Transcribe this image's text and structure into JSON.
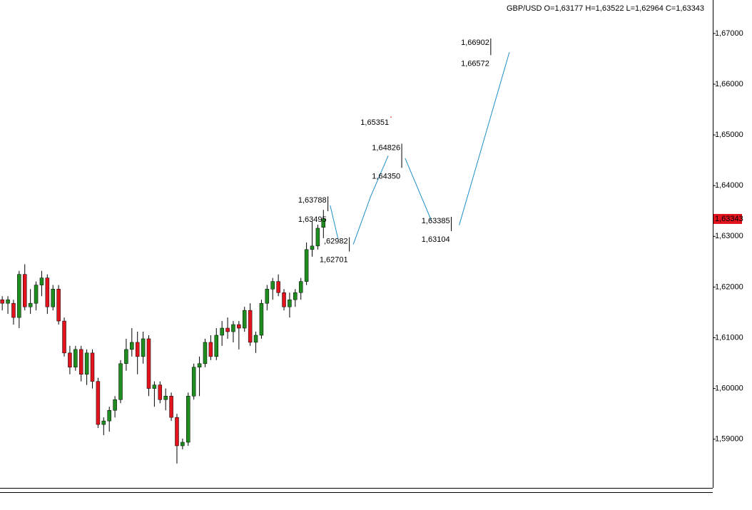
{
  "chart_data": {
    "type": "candlestick",
    "title": "GBP/USD O=1,63177 H=1,63522 L=1,62964 C=1,63343",
    "up_color": "#1e8c1e",
    "down_color": "#e2131c",
    "xlim": [
      -0.4,
      126.1
    ],
    "ylim": [
      1.5804,
      1.6766
    ],
    "yticks": [
      {
        "value": 1.59,
        "label": "1,59000"
      },
      {
        "value": 1.6,
        "label": "1,60000"
      },
      {
        "value": 1.61,
        "label": "1,61000"
      },
      {
        "value": 1.62,
        "label": "1,62000"
      },
      {
        "value": 1.63,
        "label": "1,63000"
      },
      {
        "value": 1.64,
        "label": "1,64000"
      },
      {
        "value": 1.65,
        "label": "1,65000"
      },
      {
        "value": 1.66,
        "label": "1,66000"
      },
      {
        "value": 1.67,
        "label": "1,67000"
      }
    ],
    "candles": {
      "open": [
        1.6175,
        1.6168,
        1.6168,
        1.614,
        1.6225,
        1.6161,
        1.6168,
        1.6204,
        1.6218,
        1.6161,
        1.6196,
        1.6133,
        1.607,
        1.6042,
        1.6077,
        1.6028,
        1.607,
        1.6014,
        1.5929,
        1.5936,
        1.5957,
        1.5978,
        1.6049,
        1.6077,
        1.6091,
        1.6063,
        1.6098,
        1.6,
        1.6007,
        1.5978,
        1.5985,
        1.5943,
        1.5887,
        1.5894,
        1.5985,
        1.6042,
        1.6049,
        1.6091,
        1.6063,
        1.6105,
        1.6119,
        1.6112,
        1.6126,
        1.6119,
        1.6154,
        1.6091,
        1.6105,
        1.6168,
        1.6196,
        1.6211,
        1.6189,
        1.6161,
        1.6175,
        1.6189,
        1.6211,
        1.6274,
        1.6281,
        1.63177
      ],
      "high": [
        1.6182,
        1.6182,
        1.6175,
        1.6232,
        1.6245,
        1.6196,
        1.6211,
        1.6232,
        1.6225,
        1.6204,
        1.6204,
        1.614,
        1.6084,
        1.6084,
        1.6084,
        1.6077,
        1.6077,
        1.6021,
        1.5943,
        1.5964,
        1.5985,
        1.6056,
        1.6098,
        1.6119,
        1.6112,
        1.6112,
        1.6105,
        1.6014,
        1.6014,
        1.6,
        1.5992,
        1.595,
        1.5901,
        1.5992,
        1.6049,
        1.6063,
        1.6098,
        1.6105,
        1.6119,
        1.6133,
        1.614,
        1.6133,
        1.6133,
        1.6161,
        1.6168,
        1.6112,
        1.6175,
        1.6204,
        1.6218,
        1.6225,
        1.6196,
        1.6189,
        1.6196,
        1.6218,
        1.6288,
        1.633,
        1.6323,
        1.63522
      ],
      "low": [
        1.6154,
        1.6147,
        1.6126,
        1.6119,
        1.6154,
        1.6147,
        1.6154,
        1.6182,
        1.6147,
        1.6154,
        1.6126,
        1.6063,
        1.6028,
        1.6035,
        1.6014,
        1.6007,
        1.6,
        1.5922,
        1.5908,
        1.5915,
        1.5943,
        1.5971,
        1.6035,
        1.6063,
        1.6028,
        1.6049,
        1.5985,
        1.5964,
        1.5971,
        1.5957,
        1.5936,
        1.5852,
        1.588,
        1.5887,
        1.5978,
        1.5985,
        1.6042,
        1.6056,
        1.6056,
        1.6084,
        1.6098,
        1.6091,
        1.6077,
        1.6112,
        1.6084,
        1.607,
        1.6098,
        1.6154,
        1.6175,
        1.6182,
        1.6154,
        1.614,
        1.6161,
        1.6175,
        1.6204,
        1.626,
        1.6274,
        1.62964
      ],
      "close": [
        1.6168,
        1.6175,
        1.614,
        1.6225,
        1.6161,
        1.6168,
        1.6204,
        1.6218,
        1.6161,
        1.6196,
        1.6133,
        1.607,
        1.6042,
        1.6077,
        1.6028,
        1.607,
        1.6014,
        1.5929,
        1.5936,
        1.5957,
        1.5978,
        1.6049,
        1.6077,
        1.6091,
        1.6063,
        1.6098,
        1.6,
        1.6007,
        1.5978,
        1.5985,
        1.5943,
        1.5887,
        1.5894,
        1.5985,
        1.6042,
        1.6049,
        1.6091,
        1.6063,
        1.6105,
        1.6119,
        1.6112,
        1.6126,
        1.6119,
        1.6154,
        1.6091,
        1.6105,
        1.6168,
        1.6196,
        1.6211,
        1.6189,
        1.6161,
        1.6175,
        1.6189,
        1.6211,
        1.6274,
        1.6281,
        1.6316,
        1.63343
      ]
    },
    "projection": {
      "color": "#1e8fc8",
      "x": [
        58.2,
        59.6,
        null,
        62.3,
        65.4,
        68.5,
        null,
        71.5,
        76.2,
        null,
        81.1,
        90.0
      ],
      "values": [
        1.6361,
        1.6295,
        null,
        1.6284,
        1.6379,
        1.6459,
        null,
        1.6454,
        1.633,
        null,
        1.6322,
        1.6663
      ]
    },
    "levels": [
      {
        "x": 57.8,
        "values": [
          1.63788,
          1.63495
        ],
        "value_labels": [
          "1,63788",
          "1,63495"
        ]
      },
      {
        "x": 61.6,
        "values": [
          1.62982,
          1.62701
        ],
        "value_labels": [
          ",62982",
          "1,62701"
        ]
      },
      {
        "x": 70.9,
        "values": [
          1.64826,
          1.6435
        ],
        "value_labels": [
          "1,64826",
          "1,64350"
        ]
      },
      {
        "x": 79.7,
        "values": [
          1.63385,
          1.63104
        ],
        "value_labels": [
          "1,63385",
          "1,63104"
        ]
      },
      {
        "x": 86.7,
        "values": [
          1.66902,
          1.66572
        ],
        "value_labels": [
          "1,66902",
          "1,66572"
        ]
      }
    ],
    "target": {
      "x": 69.0,
      "value": 1.65351,
      "label": "1,65351",
      "color": "#e2131c"
    },
    "last_price": {
      "value": 1.63343,
      "label": "1,63343",
      "color": "#e2131c"
    }
  }
}
